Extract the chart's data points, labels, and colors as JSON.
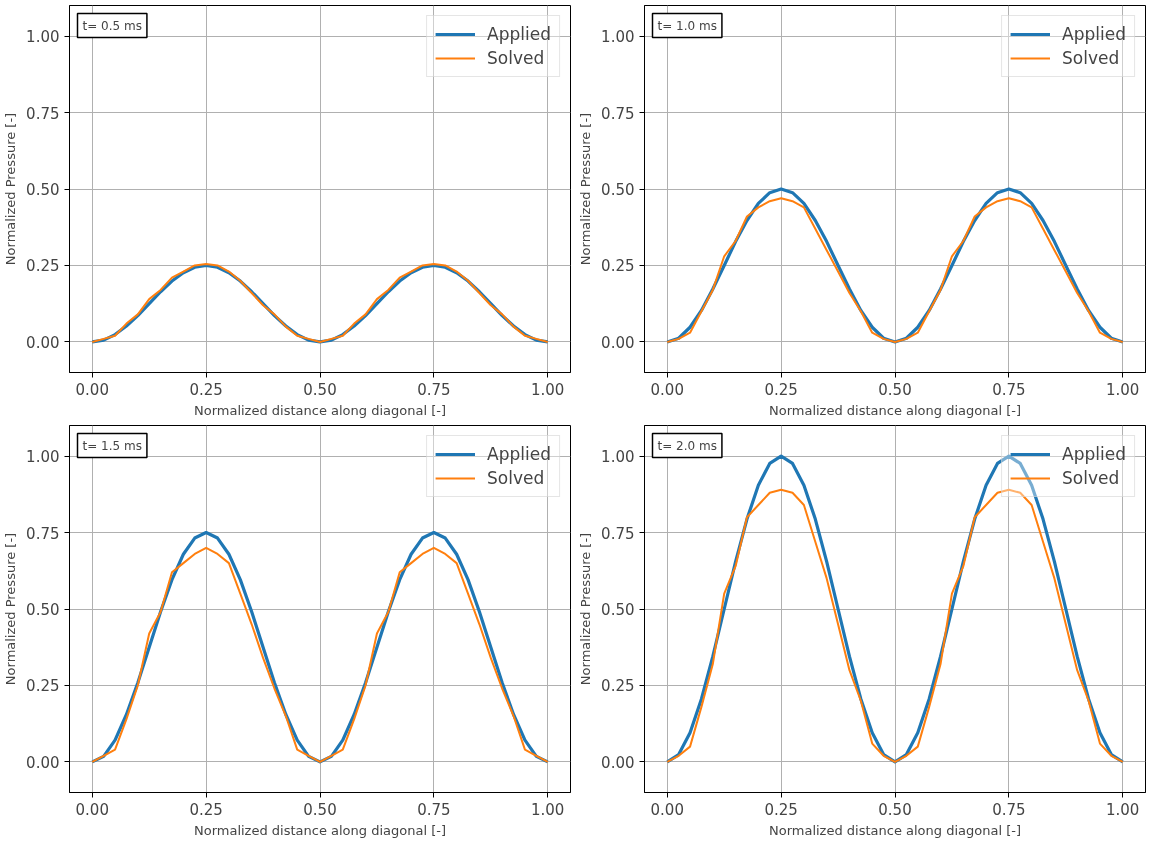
{
  "chart_data": [
    {
      "type": "line",
      "xlabel": "Normalized distance along diagonal [-]",
      "ylabel": "Normalized Pressure [-]",
      "annotations": [
        "t= 0.5 ms"
      ],
      "xlim": [
        -0.05,
        1.05
      ],
      "ylim": [
        -0.1,
        1.1
      ],
      "xticks": [
        {
          "value": 0,
          "label": "0.00"
        },
        {
          "value": 0.25,
          "label": "0.25"
        },
        {
          "value": 0.5,
          "label": "0.50"
        },
        {
          "value": 0.75,
          "label": "0.75"
        },
        {
          "value": 1,
          "label": "1.00"
        }
      ],
      "yticks": [
        {
          "value": 0,
          "label": "0.00"
        },
        {
          "value": 0.25,
          "label": "0.25"
        },
        {
          "value": 0.5,
          "label": "0.50"
        },
        {
          "value": 0.75,
          "label": "0.75"
        },
        {
          "value": 1,
          "label": "1.00"
        }
      ],
      "grid": true,
      "legend": "top right",
      "x": [
        0,
        0.025,
        0.05,
        0.075,
        0.1,
        0.125,
        0.15,
        0.175,
        0.2,
        0.225,
        0.25,
        0.275,
        0.3,
        0.325,
        0.35,
        0.375,
        0.4,
        0.425,
        0.45,
        0.475,
        0.5,
        0.525,
        0.55,
        0.575,
        0.6,
        0.625,
        0.65,
        0.675,
        0.7,
        0.725,
        0.75,
        0.775,
        0.8,
        0.825,
        0.85,
        0.875,
        0.9,
        0.925,
        0.95,
        0.975,
        1
      ],
      "series": [
        {
          "name": "Applied",
          "color": "#1f77b4",
          "values": [
            0,
            0.006,
            0.024,
            0.052,
            0.086,
            0.125,
            0.164,
            0.199,
            0.226,
            0.244,
            0.25,
            0.244,
            0.226,
            0.199,
            0.164,
            0.125,
            0.086,
            0.052,
            0.024,
            0.006,
            0,
            0.006,
            0.024,
            0.052,
            0.086,
            0.125,
            0.164,
            0.199,
            0.226,
            0.244,
            0.25,
            0.244,
            0.226,
            0.199,
            0.164,
            0.125,
            0.086,
            0.052,
            0.024,
            0.006,
            0
          ]
        },
        {
          "name": "Solved",
          "color": "#ff7f0e",
          "values": [
            0,
            0.01,
            0.02,
            0.06,
            0.09,
            0.14,
            0.17,
            0.21,
            0.23,
            0.25,
            0.255,
            0.25,
            0.23,
            0.2,
            0.16,
            0.12,
            0.09,
            0.05,
            0.02,
            0.01,
            0,
            0.01,
            0.02,
            0.06,
            0.09,
            0.14,
            0.17,
            0.21,
            0.23,
            0.25,
            0.255,
            0.25,
            0.23,
            0.2,
            0.16,
            0.12,
            0.09,
            0.05,
            0.02,
            0.01,
            0
          ]
        }
      ]
    },
    {
      "type": "line",
      "xlabel": "Normalized distance along diagonal [-]",
      "ylabel": "Normalized Pressure [-]",
      "annotations": [
        "t= 1.0 ms"
      ],
      "xlim": [
        -0.05,
        1.05
      ],
      "ylim": [
        -0.1,
        1.1
      ],
      "xticks": [
        {
          "value": 0,
          "label": "0.00"
        },
        {
          "value": 0.25,
          "label": "0.25"
        },
        {
          "value": 0.5,
          "label": "0.50"
        },
        {
          "value": 0.75,
          "label": "0.75"
        },
        {
          "value": 1,
          "label": "1.00"
        }
      ],
      "yticks": [
        {
          "value": 0,
          "label": "0.00"
        },
        {
          "value": 0.25,
          "label": "0.25"
        },
        {
          "value": 0.5,
          "label": "0.50"
        },
        {
          "value": 0.75,
          "label": "0.75"
        },
        {
          "value": 1,
          "label": "1.00"
        }
      ],
      "grid": true,
      "legend": "top right",
      "x": [
        0,
        0.025,
        0.05,
        0.075,
        0.1,
        0.125,
        0.15,
        0.175,
        0.2,
        0.225,
        0.25,
        0.275,
        0.3,
        0.325,
        0.35,
        0.375,
        0.4,
        0.425,
        0.45,
        0.475,
        0.5,
        0.525,
        0.55,
        0.575,
        0.6,
        0.625,
        0.65,
        0.675,
        0.7,
        0.725,
        0.75,
        0.775,
        0.8,
        0.825,
        0.85,
        0.875,
        0.9,
        0.925,
        0.95,
        0.975,
        1
      ],
      "series": [
        {
          "name": "Applied",
          "color": "#1f77b4",
          "values": [
            0,
            0.012,
            0.048,
            0.103,
            0.173,
            0.25,
            0.328,
            0.397,
            0.453,
            0.488,
            0.5,
            0.488,
            0.453,
            0.397,
            0.328,
            0.25,
            0.173,
            0.103,
            0.048,
            0.012,
            0,
            0.012,
            0.048,
            0.103,
            0.173,
            0.25,
            0.328,
            0.397,
            0.453,
            0.488,
            0.5,
            0.488,
            0.453,
            0.397,
            0.328,
            0.25,
            0.173,
            0.103,
            0.048,
            0.012,
            0
          ]
        },
        {
          "name": "Solved",
          "color": "#ff7f0e",
          "values": [
            0,
            0.01,
            0.03,
            0.1,
            0.17,
            0.28,
            0.33,
            0.41,
            0.44,
            0.46,
            0.47,
            0.46,
            0.44,
            0.37,
            0.3,
            0.23,
            0.16,
            0.1,
            0.03,
            0.01,
            0,
            0.01,
            0.03,
            0.1,
            0.17,
            0.28,
            0.33,
            0.41,
            0.44,
            0.46,
            0.47,
            0.46,
            0.44,
            0.37,
            0.3,
            0.23,
            0.16,
            0.1,
            0.03,
            0.01,
            0
          ]
        }
      ]
    },
    {
      "type": "line",
      "xlabel": "Normalized distance along diagonal [-]",
      "ylabel": "Normalized Pressure [-]",
      "annotations": [
        "t= 1.5 ms"
      ],
      "xlim": [
        -0.05,
        1.05
      ],
      "ylim": [
        -0.1,
        1.1
      ],
      "xticks": [
        {
          "value": 0,
          "label": "0.00"
        },
        {
          "value": 0.25,
          "label": "0.25"
        },
        {
          "value": 0.5,
          "label": "0.50"
        },
        {
          "value": 0.75,
          "label": "0.75"
        },
        {
          "value": 1,
          "label": "1.00"
        }
      ],
      "yticks": [
        {
          "value": 0,
          "label": "0.00"
        },
        {
          "value": 0.25,
          "label": "0.25"
        },
        {
          "value": 0.5,
          "label": "0.50"
        },
        {
          "value": 0.75,
          "label": "0.75"
        },
        {
          "value": 1,
          "label": "1.00"
        }
      ],
      "grid": true,
      "legend": "top right",
      "x": [
        0,
        0.025,
        0.05,
        0.075,
        0.1,
        0.125,
        0.15,
        0.175,
        0.2,
        0.225,
        0.25,
        0.275,
        0.3,
        0.325,
        0.35,
        0.375,
        0.4,
        0.425,
        0.45,
        0.475,
        0.5,
        0.525,
        0.55,
        0.575,
        0.6,
        0.625,
        0.65,
        0.675,
        0.7,
        0.725,
        0.75,
        0.775,
        0.8,
        0.825,
        0.85,
        0.875,
        0.9,
        0.925,
        0.95,
        0.975,
        1
      ],
      "series": [
        {
          "name": "Applied",
          "color": "#1f77b4",
          "values": [
            0,
            0.018,
            0.071,
            0.155,
            0.259,
            0.375,
            0.491,
            0.596,
            0.679,
            0.732,
            0.75,
            0.732,
            0.679,
            0.596,
            0.491,
            0.375,
            0.259,
            0.155,
            0.071,
            0.018,
            0,
            0.018,
            0.071,
            0.155,
            0.259,
            0.375,
            0.491,
            0.596,
            0.679,
            0.732,
            0.75,
            0.732,
            0.679,
            0.596,
            0.491,
            0.375,
            0.259,
            0.155,
            0.071,
            0.018,
            0
          ]
        },
        {
          "name": "Solved",
          "color": "#ff7f0e",
          "values": [
            0,
            0.02,
            0.04,
            0.14,
            0.25,
            0.42,
            0.49,
            0.62,
            0.65,
            0.68,
            0.7,
            0.68,
            0.65,
            0.55,
            0.45,
            0.34,
            0.24,
            0.15,
            0.04,
            0.02,
            0,
            0.02,
            0.04,
            0.14,
            0.25,
            0.42,
            0.49,
            0.62,
            0.65,
            0.68,
            0.7,
            0.68,
            0.65,
            0.55,
            0.45,
            0.34,
            0.24,
            0.15,
            0.04,
            0.02,
            0
          ]
        }
      ]
    },
    {
      "type": "line",
      "xlabel": "Normalized distance along diagonal [-]",
      "ylabel": "Normalized Pressure [-]",
      "annotations": [
        "t= 2.0 ms"
      ],
      "xlim": [
        -0.05,
        1.05
      ],
      "ylim": [
        -0.1,
        1.1
      ],
      "xticks": [
        {
          "value": 0,
          "label": "0.00"
        },
        {
          "value": 0.25,
          "label": "0.25"
        },
        {
          "value": 0.5,
          "label": "0.50"
        },
        {
          "value": 0.75,
          "label": "0.75"
        },
        {
          "value": 1,
          "label": "1.00"
        }
      ],
      "yticks": [
        {
          "value": 0,
          "label": "0.00"
        },
        {
          "value": 0.25,
          "label": "0.25"
        },
        {
          "value": 0.5,
          "label": "0.50"
        },
        {
          "value": 0.75,
          "label": "0.75"
        },
        {
          "value": 1,
          "label": "1.00"
        }
      ],
      "grid": true,
      "legend": "top right",
      "x": [
        0,
        0.025,
        0.05,
        0.075,
        0.1,
        0.125,
        0.15,
        0.175,
        0.2,
        0.225,
        0.25,
        0.275,
        0.3,
        0.325,
        0.35,
        0.375,
        0.4,
        0.425,
        0.45,
        0.475,
        0.5,
        0.525,
        0.55,
        0.575,
        0.6,
        0.625,
        0.65,
        0.675,
        0.7,
        0.725,
        0.75,
        0.775,
        0.8,
        0.825,
        0.85,
        0.875,
        0.9,
        0.925,
        0.95,
        0.975,
        1
      ],
      "series": [
        {
          "name": "Applied",
          "color": "#1f77b4",
          "values": [
            0,
            0.024,
            0.095,
            0.206,
            0.345,
            0.5,
            0.655,
            0.794,
            0.905,
            0.976,
            1,
            0.976,
            0.905,
            0.794,
            0.655,
            0.5,
            0.345,
            0.206,
            0.095,
            0.024,
            0,
            0.024,
            0.095,
            0.206,
            0.345,
            0.5,
            0.655,
            0.794,
            0.905,
            0.976,
            1,
            0.976,
            0.905,
            0.794,
            0.655,
            0.5,
            0.345,
            0.206,
            0.095,
            0.024,
            0
          ]
        },
        {
          "name": "Solved",
          "color": "#ff7f0e",
          "values": [
            0,
            0.02,
            0.05,
            0.18,
            0.32,
            0.55,
            0.64,
            0.8,
            0.84,
            0.88,
            0.89,
            0.88,
            0.84,
            0.72,
            0.6,
            0.45,
            0.3,
            0.2,
            0.06,
            0.02,
            0,
            0.02,
            0.05,
            0.18,
            0.32,
            0.55,
            0.64,
            0.8,
            0.84,
            0.88,
            0.89,
            0.88,
            0.84,
            0.72,
            0.6,
            0.45,
            0.3,
            0.2,
            0.06,
            0.02,
            0
          ]
        }
      ]
    }
  ]
}
